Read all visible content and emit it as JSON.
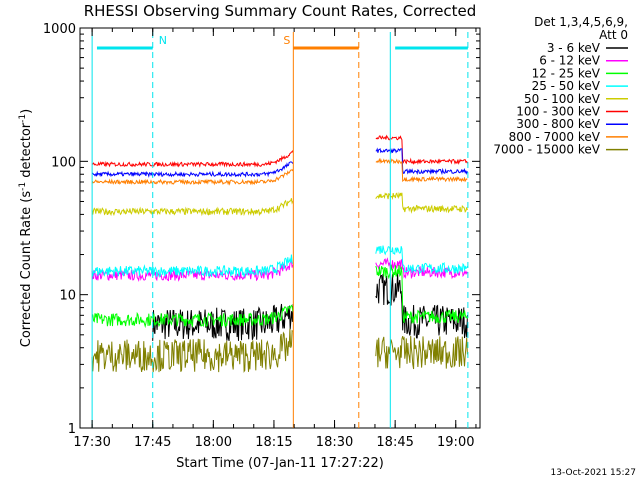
{
  "chart_data": {
    "type": "line",
    "title": "RHESSI Observing Summary Count Rates, Corrected",
    "xlabel": "Start Time (07-Jan-11 17:27:22)",
    "ylabel_main": "Corrected Count Rate (s",
    "ylabel_sup1": "-1",
    "ylabel_mid": " detector",
    "ylabel_sup2": "-1",
    "ylabel_end": ")",
    "yscale": "log",
    "ylim": [
      1,
      1000
    ],
    "xlim_min": [
      17.45,
      19.1
    ],
    "x_ticks": [
      "17:30",
      "17:45",
      "18:00",
      "18:15",
      "18:30",
      "18:45",
      "19:00"
    ],
    "y_ticks": [
      "1",
      "10",
      "100",
      "1000"
    ],
    "detector_info": [
      "Det 1,3,4,5,6,9,",
      "Att 0"
    ],
    "footer_date": "13-Oct-2021 15:27",
    "gap_min": [
      18.33,
      18.67
    ],
    "annotations": [
      {
        "label": "N",
        "color": "#00e5ee",
        "start": 17.52,
        "end": 17.75
      },
      {
        "label": "S",
        "color": "#ff7f00",
        "start": 18.33,
        "end": 18.6
      },
      {
        "label": "",
        "color": "#00e5ee",
        "start": 18.75,
        "end": 19.05
      }
    ],
    "vlines": [
      {
        "x": 17.5,
        "color": "#00e5ee",
        "style": "solid"
      },
      {
        "x": 17.75,
        "color": "#00e5ee",
        "style": "dashed"
      },
      {
        "x": 18.33,
        "color": "#ff7f00",
        "style": "solid"
      },
      {
        "x": 18.6,
        "color": "#ff7f00",
        "style": "dashed"
      },
      {
        "x": 18.73,
        "color": "#00e5ee",
        "style": "solid"
      },
      {
        "x": 19.05,
        "color": "#00e5ee",
        "style": "dashed"
      }
    ],
    "series": [
      {
        "name": "3 - 6 keV",
        "color": "#000000",
        "level1": 6,
        "level2": 11,
        "start": 17.75,
        "noise": 0.25
      },
      {
        "name": "6 - 12 keV",
        "color": "#ff00ff",
        "level1": 14,
        "level2": 17,
        "start": 17.5,
        "noise": 0.08
      },
      {
        "name": "12 - 25 keV",
        "color": "#00ff00",
        "level1": 6.5,
        "level2": 15,
        "start": 17.5,
        "noise": 0.1
      },
      {
        "name": "25 - 50 keV",
        "color": "#00ffff",
        "level1": 15,
        "level2": 22,
        "start": 17.5,
        "noise": 0.08
      },
      {
        "name": "50 - 100 keV",
        "color": "#cccc00",
        "level1": 42,
        "level2": 55,
        "start": 17.5,
        "noise": 0.05
      },
      {
        "name": "100 - 300 keV",
        "color": "#ff0000",
        "level1": 95,
        "level2": 150,
        "start": 17.5,
        "noise": 0.03
      },
      {
        "name": "300 - 800 keV",
        "color": "#0000ff",
        "level1": 80,
        "level2": 120,
        "start": 17.5,
        "noise": 0.03
      },
      {
        "name": "800 - 7000 keV",
        "color": "#ff7f00",
        "level1": 70,
        "level2": 100,
        "start": 17.5,
        "noise": 0.03
      },
      {
        "name": "7000 - 15000 keV",
        "color": "#808000",
        "level1": 3.5,
        "level2": 3.7,
        "start": 17.5,
        "noise": 0.25
      }
    ]
  }
}
